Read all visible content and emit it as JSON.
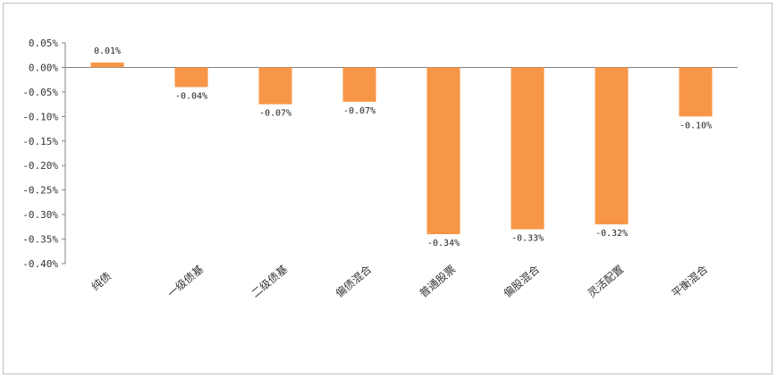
{
  "chart_data": {
    "type": "bar",
    "categories": [
      "纯债",
      "一级债基",
      "二级债基",
      "偏债混合",
      "普通股票",
      "偏股混合",
      "灵活配置",
      "平衡混合"
    ],
    "values": [
      0.01,
      -0.04,
      -0.075,
      -0.07,
      -0.34,
      -0.33,
      -0.32,
      -0.1
    ],
    "data_labels": [
      "0.01%",
      "-0.04%",
      "-0.07%",
      "-0.07%",
      "-0.34%",
      "-0.33%",
      "-0.32%",
      "-0.10%"
    ],
    "y_ticks": [
      "0.05%",
      "0.00%",
      "-0.05%",
      "-0.10%",
      "-0.15%",
      "-0.20%",
      "-0.25%",
      "-0.30%",
      "-0.35%",
      "-0.40%"
    ],
    "ylim": [
      -0.4,
      0.05
    ],
    "bar_color": "#f79646",
    "axis_color": "#808080",
    "grid": false,
    "legend": false,
    "title": "",
    "xlabel": "",
    "ylabel": ""
  }
}
